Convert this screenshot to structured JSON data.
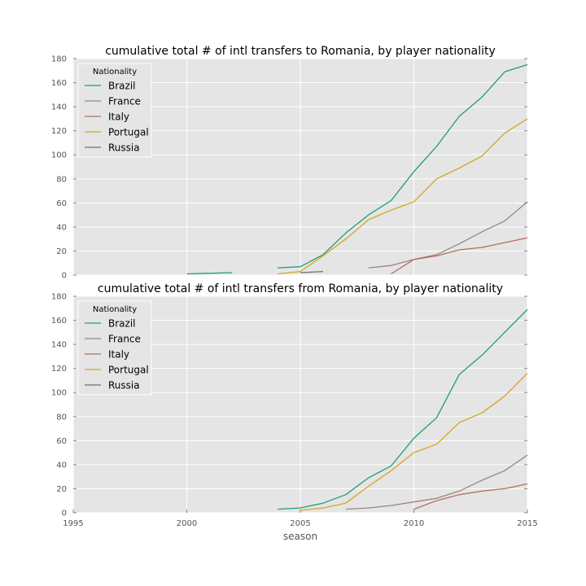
{
  "chart_data": [
    {
      "type": "line",
      "title": "cumulative total # of intl transfers to Romania, by player nationality",
      "xlabel": "",
      "ylabel": "",
      "xlim": [
        1995,
        2015
      ],
      "ylim": [
        0,
        180
      ],
      "yticks": [
        0,
        20,
        40,
        60,
        80,
        100,
        120,
        140,
        160,
        180
      ],
      "grid": true,
      "legend": {
        "title": "Nationality",
        "placement": "top-left"
      },
      "series": [
        {
          "name": "Brazil",
          "color": "#1b9e77",
          "segments": [
            [
              [
                2000,
                1
              ],
              [
                2002,
                2
              ]
            ],
            [
              [
                2004,
                6
              ],
              [
                2005,
                7
              ],
              [
                2006,
                17
              ],
              [
                2007,
                35
              ],
              [
                2008,
                50
              ],
              [
                2009,
                62
              ],
              [
                2010,
                86
              ],
              [
                2011,
                107
              ],
              [
                2012,
                132
              ],
              [
                2013,
                148
              ],
              [
                2014,
                169
              ],
              [
                2015,
                175
              ]
            ]
          ]
        },
        {
          "name": "France",
          "color": "#9c8384",
          "segments": [
            [
              [
                2008,
                6
              ],
              [
                2009,
                8
              ],
              [
                2010,
                13
              ],
              [
                2011,
                17
              ],
              [
                2012,
                26
              ],
              [
                2013,
                36
              ],
              [
                2014,
                45
              ],
              [
                2015,
                61
              ]
            ]
          ]
        },
        {
          "name": "Italy",
          "color": "#b0705a",
          "segments": [
            [
              [
                2009,
                1
              ],
              [
                2010,
                13
              ],
              [
                2011,
                16
              ],
              [
                2012,
                21
              ],
              [
                2013,
                23
              ],
              [
                2014,
                27
              ],
              [
                2015,
                31
              ]
            ]
          ]
        },
        {
          "name": "Portugal",
          "color": "#d6a420",
          "segments": [
            [
              [
                2004,
                1
              ],
              [
                2005,
                3
              ],
              [
                2006,
                16
              ],
              [
                2007,
                30
              ],
              [
                2008,
                46
              ],
              [
                2009,
                54
              ],
              [
                2010,
                61
              ],
              [
                2011,
                80
              ],
              [
                2012,
                89
              ],
              [
                2013,
                99
              ],
              [
                2014,
                118
              ],
              [
                2015,
                130
              ]
            ]
          ]
        },
        {
          "name": "Russia",
          "color": "#7c6673",
          "segments": [
            [
              [
                2005,
                2
              ],
              [
                2006,
                3
              ]
            ]
          ]
        }
      ]
    },
    {
      "type": "line",
      "title": "cumulative total # of intl transfers from Romania, by player nationality",
      "xlabel": "season",
      "ylabel": "",
      "xlim": [
        1995,
        2015
      ],
      "ylim": [
        0,
        180
      ],
      "xticks": [
        1995,
        2000,
        2005,
        2010,
        2015
      ],
      "yticks": [
        0,
        20,
        40,
        60,
        80,
        100,
        120,
        140,
        160,
        180
      ],
      "grid": true,
      "legend": {
        "title": "Nationality",
        "placement": "top-left"
      },
      "series": [
        {
          "name": "Brazil",
          "color": "#1b9e77",
          "segments": [
            [
              [
                2004,
                3
              ],
              [
                2005,
                4
              ],
              [
                2006,
                8
              ],
              [
                2007,
                15
              ],
              [
                2008,
                29
              ],
              [
                2009,
                39
              ],
              [
                2010,
                62
              ],
              [
                2011,
                79
              ],
              [
                2012,
                115
              ],
              [
                2013,
                131
              ],
              [
                2014,
                150
              ],
              [
                2015,
                169
              ]
            ]
          ]
        },
        {
          "name": "France",
          "color": "#9c8384",
          "segments": [
            [
              [
                2007,
                3
              ],
              [
                2008,
                4
              ],
              [
                2009,
                6
              ],
              [
                2010,
                9
              ],
              [
                2011,
                12
              ],
              [
                2012,
                18
              ],
              [
                2013,
                27
              ],
              [
                2014,
                35
              ],
              [
                2015,
                48
              ]
            ]
          ]
        },
        {
          "name": "Italy",
          "color": "#b0705a",
          "segments": [
            [
              [
                2010,
                3
              ],
              [
                2011,
                10
              ],
              [
                2012,
                15
              ],
              [
                2013,
                18
              ],
              [
                2014,
                20
              ],
              [
                2015,
                24
              ]
            ]
          ]
        },
        {
          "name": "Portugal",
          "color": "#d6a420",
          "segments": [
            [
              [
                2005,
                2
              ],
              [
                2006,
                4
              ],
              [
                2007,
                8
              ],
              [
                2008,
                22
              ],
              [
                2009,
                35
              ],
              [
                2010,
                50
              ],
              [
                2011,
                57
              ],
              [
                2012,
                75
              ],
              [
                2013,
                83
              ],
              [
                2014,
                97
              ],
              [
                2015,
                116
              ]
            ]
          ]
        },
        {
          "name": "Russia",
          "color": "#7c6673",
          "segments": []
        }
      ]
    }
  ]
}
